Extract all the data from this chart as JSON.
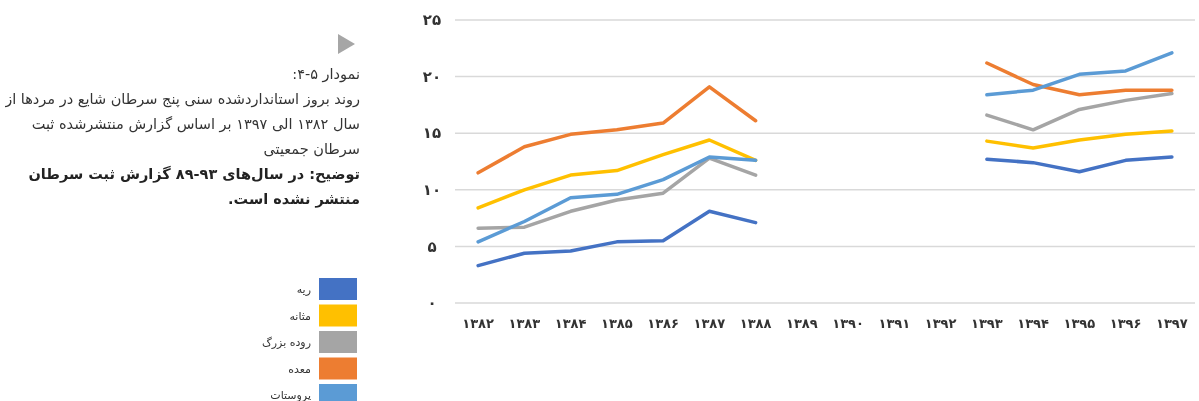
{
  "chart_data": {
    "type": "line",
    "title": "نمودار ۵-۴:",
    "subtitle": "روند بروز استانداردشده سنی پنج سرطان شایع در مردها از سال ۱۳۸۲ الی ۱۳۹۷ بر اساس گزارش منتشرشده ثبت سرطان جمعیتی",
    "annotations": [
      "توضیح: در سال‌های ۹۳-۸۹ گزارش ثبت سرطان منتشر نشده است."
    ],
    "categories": [
      "۱۳۸۲",
      "۱۳۸۳",
      "۱۳۸۴",
      "۱۳۸۵",
      "۱۳۸۶",
      "۱۳۸۷",
      "۱۳۸۸",
      "۱۳۸۹",
      "۱۳۹۰",
      "۱۳۹۱",
      "۱۳۹۲",
      "۱۳۹۳",
      "۱۳۹۴",
      "۱۳۹۵",
      "۱۳۹۶",
      "۱۳۹۷"
    ],
    "series": [
      {
        "name": "ریه",
        "color": "#4472c4",
        "values": [
          3.3,
          4.4,
          4.6,
          5.4,
          5.5,
          8.1,
          7.1,
          null,
          null,
          null,
          null,
          12.7,
          12.4,
          11.6,
          12.6,
          12.9
        ]
      },
      {
        "name": "مثانه",
        "color": "#ffc000",
        "values": [
          8.4,
          10.0,
          11.3,
          11.7,
          13.1,
          14.4,
          12.6,
          null,
          null,
          null,
          null,
          14.3,
          13.7,
          14.4,
          14.9,
          15.2
        ]
      },
      {
        "name": "روده بزرگ",
        "color": "#a5a5a5",
        "values": [
          6.6,
          6.7,
          8.1,
          9.1,
          9.7,
          12.8,
          11.3,
          null,
          null,
          null,
          null,
          16.6,
          15.3,
          17.1,
          17.9,
          18.5
        ]
      },
      {
        "name": "معده",
        "color": "#ed7d31",
        "values": [
          11.5,
          13.8,
          14.9,
          15.3,
          15.9,
          19.1,
          16.1,
          null,
          null,
          null,
          null,
          21.2,
          19.3,
          18.4,
          18.8,
          18.8
        ]
      },
      {
        "name": "پروستات",
        "color": "#5b9bd5",
        "values": [
          5.4,
          7.2,
          9.3,
          9.6,
          10.9,
          12.9,
          12.6,
          null,
          null,
          null,
          null,
          18.4,
          18.8,
          20.2,
          20.5,
          22.1
        ]
      }
    ],
    "ylim": [
      0,
      25
    ],
    "yticks": [
      {
        "value": 0,
        "label": "۰"
      },
      {
        "value": 5,
        "label": "۵"
      },
      {
        "value": 10,
        "label": "۱۰"
      },
      {
        "value": 15,
        "label": "۱۵"
      },
      {
        "value": 20,
        "label": "۲۰"
      },
      {
        "value": 25,
        "label": "۲۵"
      }
    ],
    "grid": "y",
    "legend": "left",
    "marker": "none",
    "line_style": "solid"
  }
}
